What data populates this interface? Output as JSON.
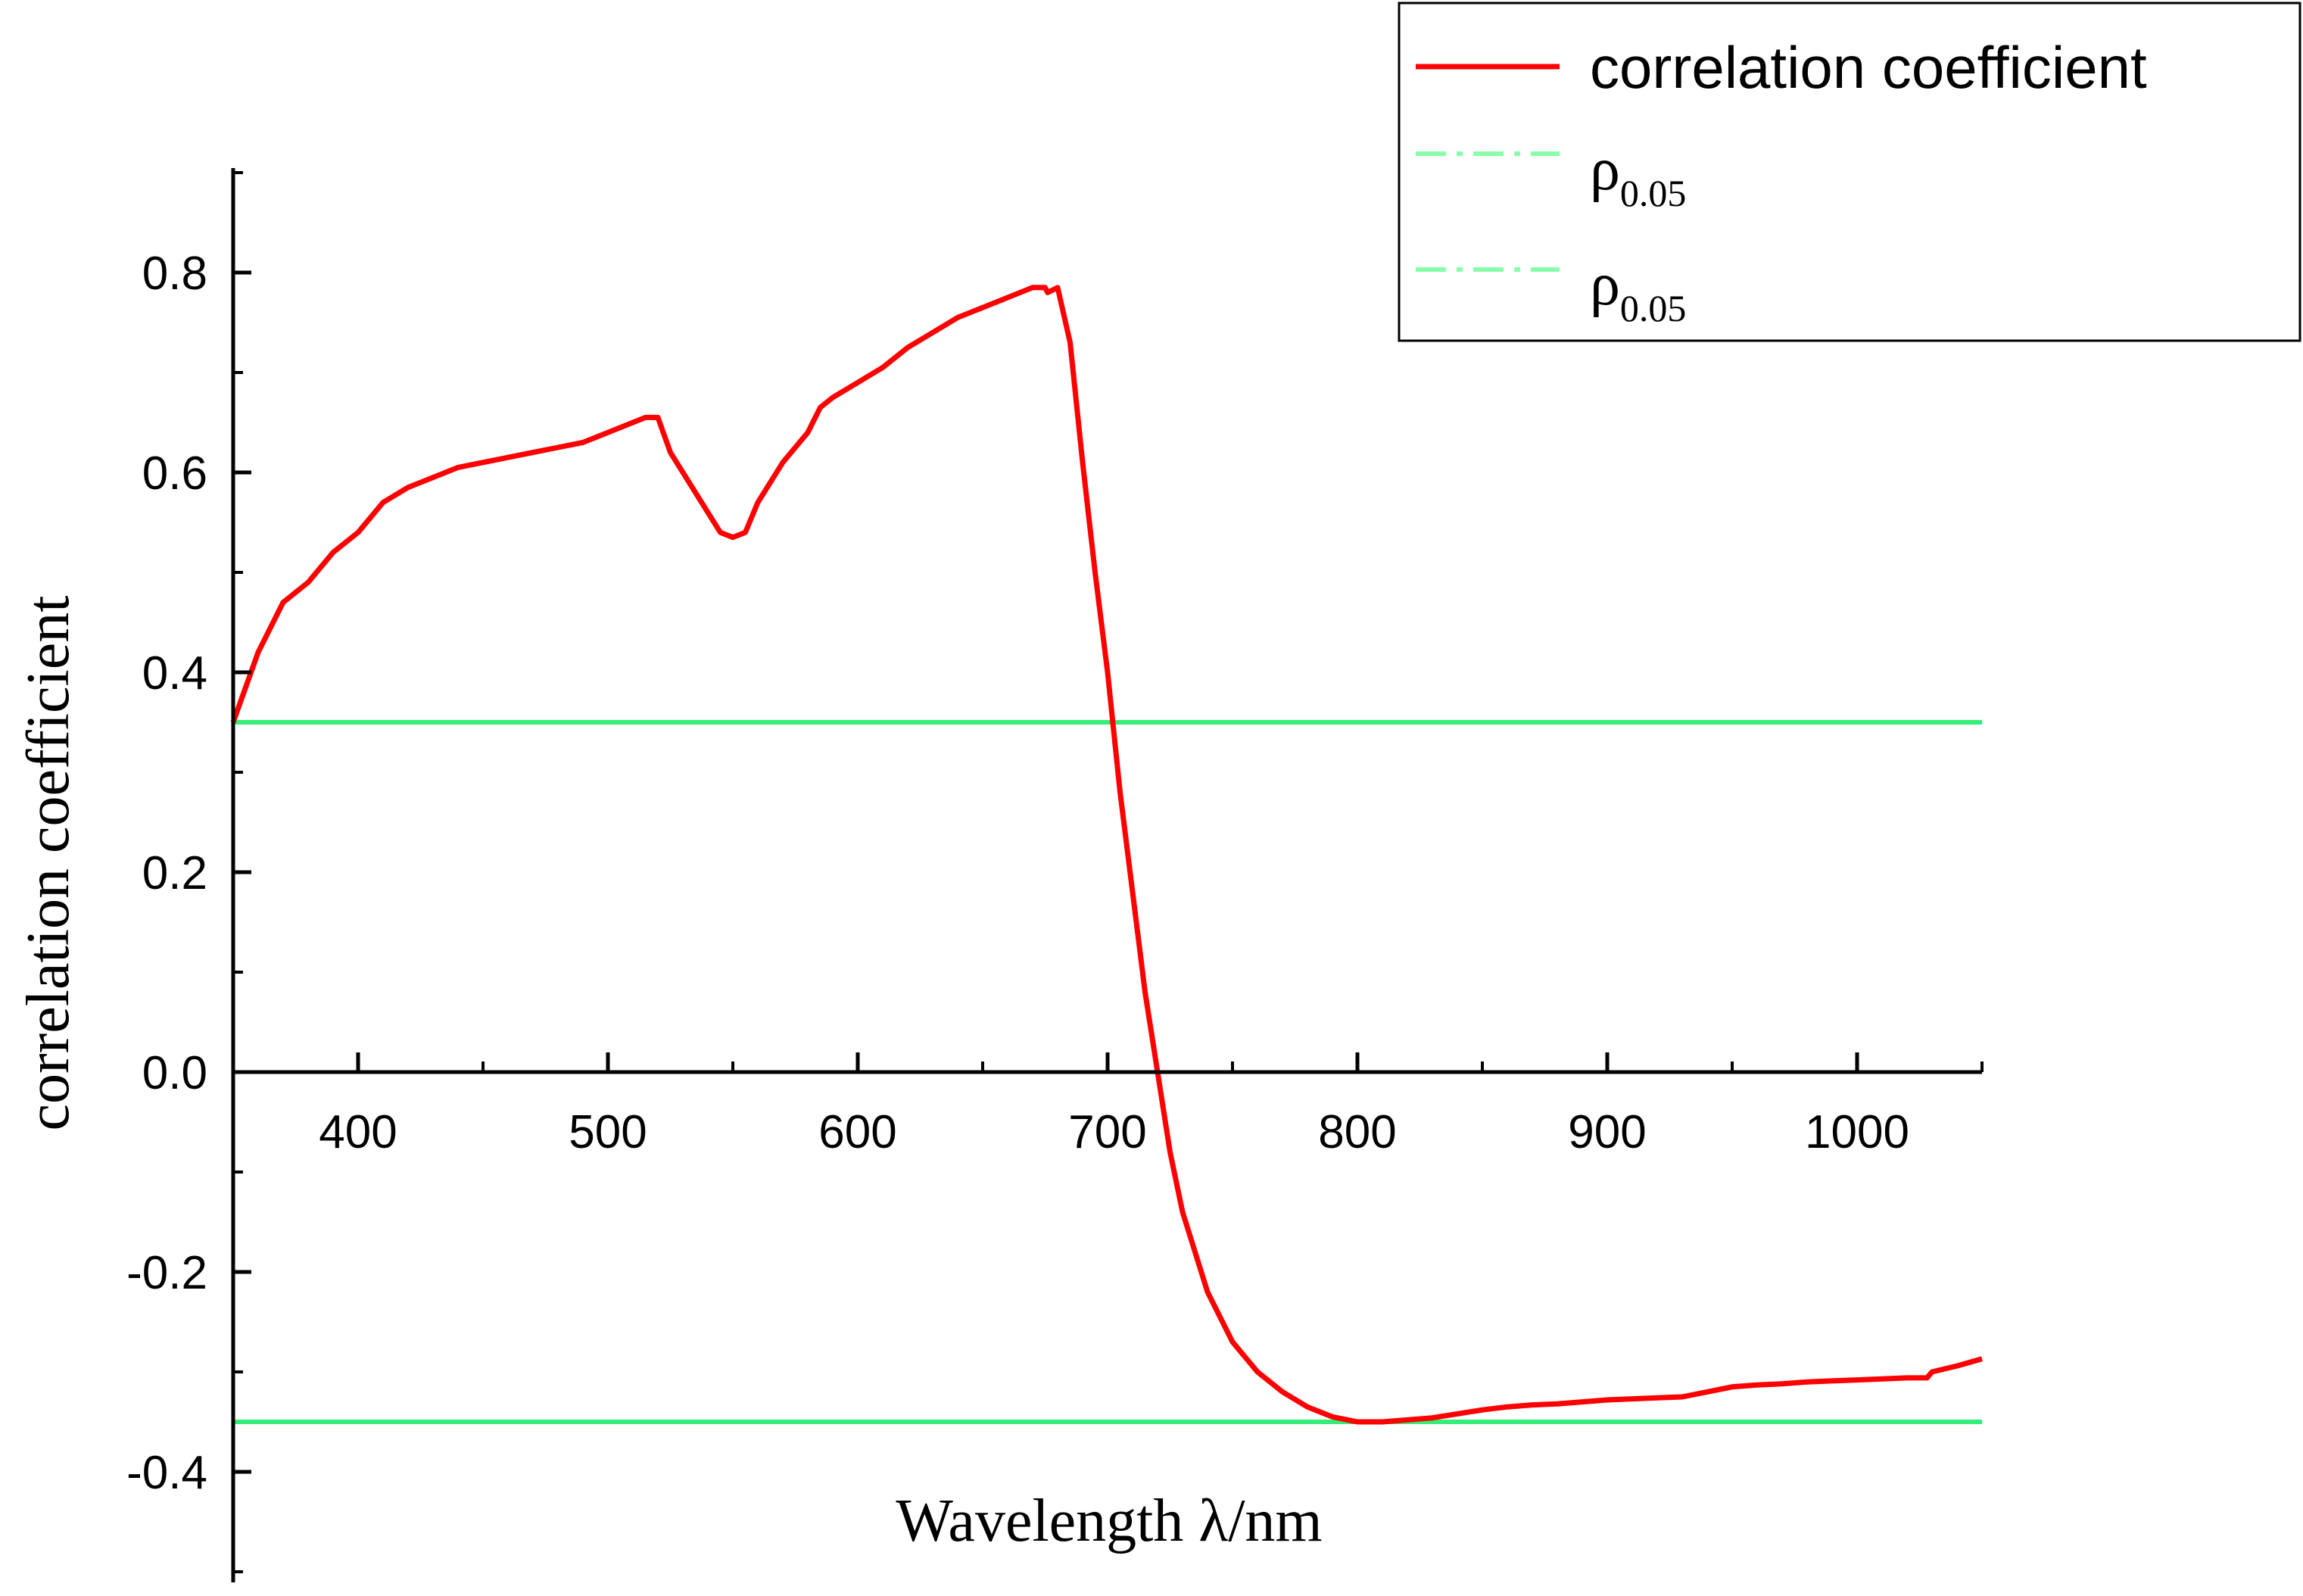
{
  "chart_data": {
    "type": "line",
    "title": "",
    "xlabel": "Wavelength  λ/nm",
    "ylabel": "correlation coefficient",
    "xlim": [
      350,
      1050
    ],
    "ylim": [
      -0.5,
      0.9
    ],
    "xticks": [
      400,
      500,
      600,
      700,
      800,
      900,
      1000
    ],
    "xtick_labels": [
      "400",
      "500",
      "600",
      "700",
      "800",
      "900",
      "1000"
    ],
    "yticks": [
      -0.4,
      -0.2,
      0.0,
      0.2,
      0.4,
      0.6,
      0.8
    ],
    "ytick_labels": [
      "-0.4",
      "-0.2",
      "0.0",
      "0.2",
      "0.4",
      "0.6",
      "0.8"
    ],
    "grid": false,
    "legend_position": "top-right",
    "series": [
      {
        "name": "correlation coefficient",
        "color": "#ff0000",
        "style": "solid",
        "x": [
          350,
          360,
          370,
          380,
          390,
          400,
          410,
          420,
          430,
          440,
          450,
          460,
          470,
          480,
          490,
          500,
          510,
          515,
          520,
          525,
          530,
          540,
          545,
          550,
          555,
          560,
          570,
          580,
          585,
          590,
          600,
          610,
          620,
          630,
          640,
          650,
          660,
          670,
          675,
          676,
          680,
          685,
          690,
          695,
          700,
          705,
          710,
          715,
          720,
          725,
          730,
          740,
          750,
          760,
          770,
          780,
          790,
          800,
          810,
          820,
          830,
          840,
          850,
          860,
          870,
          880,
          890,
          900,
          910,
          920,
          930,
          940,
          950,
          960,
          970,
          980,
          990,
          1000,
          1010,
          1020,
          1028,
          1030,
          1035,
          1040,
          1050
        ],
        "y": [
          0.35,
          0.42,
          0.47,
          0.49,
          0.52,
          0.54,
          0.57,
          0.585,
          0.595,
          0.605,
          0.61,
          0.615,
          0.62,
          0.625,
          0.63,
          0.64,
          0.65,
          0.655,
          0.655,
          0.62,
          0.6,
          0.56,
          0.54,
          0.535,
          0.54,
          0.57,
          0.61,
          0.64,
          0.665,
          0.675,
          0.69,
          0.705,
          0.725,
          0.74,
          0.755,
          0.765,
          0.775,
          0.785,
          0.785,
          0.78,
          0.785,
          0.73,
          0.61,
          0.5,
          0.4,
          0.28,
          0.18,
          0.08,
          0.0,
          -0.08,
          -0.14,
          -0.22,
          -0.27,
          -0.3,
          -0.32,
          -0.335,
          -0.345,
          -0.35,
          -0.35,
          -0.348,
          -0.346,
          -0.342,
          -0.338,
          -0.335,
          -0.333,
          -0.332,
          -0.33,
          -0.328,
          -0.327,
          -0.326,
          -0.325,
          -0.32,
          -0.315,
          -0.313,
          -0.312,
          -0.31,
          -0.309,
          -0.308,
          -0.307,
          -0.306,
          -0.306,
          -0.3,
          -0.297,
          -0.294,
          -0.287
        ]
      },
      {
        "name": "ρ0.05",
        "color": "#33ee77",
        "style": "dash-dot",
        "x": [
          350,
          1050
        ],
        "y": [
          0.35,
          0.35
        ]
      },
      {
        "name": "ρ0.05",
        "color": "#33ee77",
        "style": "dash-dot",
        "x": [
          350,
          1050
        ],
        "y": [
          -0.35,
          -0.35
        ]
      }
    ],
    "legend": [
      {
        "label": "correlation coefficient",
        "color": "#ff0000",
        "style": "solid"
      },
      {
        "label_main": "ρ",
        "label_sub": "0.05",
        "color": "#88ffaa",
        "style": "dash-dot"
      },
      {
        "label_main": "ρ",
        "label_sub": "0.05",
        "color": "#88ffaa",
        "style": "dash-dot"
      }
    ]
  }
}
